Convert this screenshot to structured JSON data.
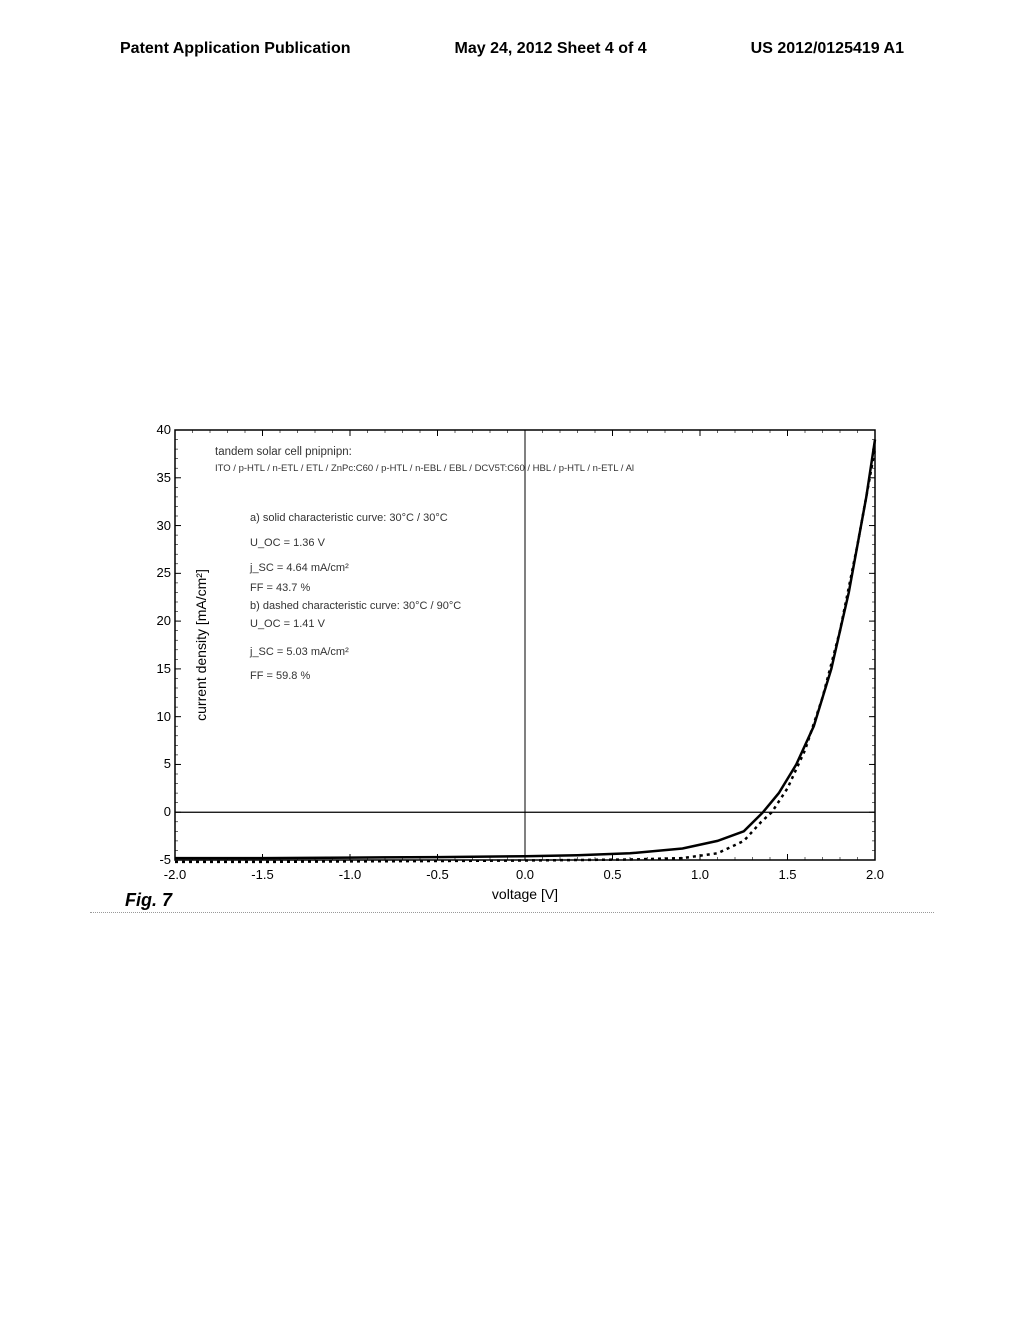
{
  "header": {
    "left": "Patent Application Publication",
    "center": "May 24, 2012  Sheet 4 of 4",
    "right": "US 2012/0125419 A1"
  },
  "figure_label": "Fig. 7",
  "chart": {
    "type": "line",
    "title": "tandem solar cell pnipnipn:",
    "subtitle": "ITO / p-HTL / n-ETL / ETL / ZnPc:C60 / p-HTL / n-EBL / EBL / DCV5T:C60 / HBL / p-HTL / n-ETL / Al",
    "xlabel": "voltage [V]",
    "ylabel": "current density [mA/cm²]",
    "xlim": [
      -2.0,
      2.0
    ],
    "ylim": [
      -5,
      40
    ],
    "xticks": [
      -2.0,
      -1.5,
      -1.0,
      -0.5,
      0.0,
      0.5,
      1.0,
      1.5,
      2.0
    ],
    "yticks": [
      -5,
      0,
      5,
      10,
      15,
      20,
      25,
      30,
      35,
      40
    ],
    "background_color": "#ffffff",
    "border_color": "#000000",
    "annotations": {
      "series_a_label": "a) solid characteristic curve: 30°C / 30°C",
      "series_a_uoc": "U_OC = 1.36 V",
      "series_a_jsc": "j_SC = 4.64 mA/cm²",
      "series_a_ff": "FF = 43.7 %",
      "series_b_label": "b) dashed characteristic curve: 30°C / 90°C",
      "series_b_uoc": "U_OC = 1.41 V",
      "series_b_jsc": "j_SC = 5.03 mA/cm²",
      "series_b_ff": "FF = 59.8 %"
    },
    "series": [
      {
        "name": "solid",
        "style": "solid",
        "color": "#000000",
        "width": 2.5,
        "data": [
          [
            -2.0,
            -4.8
          ],
          [
            -1.5,
            -4.8
          ],
          [
            -1.0,
            -4.75
          ],
          [
            -0.5,
            -4.7
          ],
          [
            0.0,
            -4.6
          ],
          [
            0.3,
            -4.5
          ],
          [
            0.6,
            -4.3
          ],
          [
            0.9,
            -3.8
          ],
          [
            1.1,
            -3.0
          ],
          [
            1.25,
            -2.0
          ],
          [
            1.36,
            0.0
          ],
          [
            1.45,
            2.0
          ],
          [
            1.55,
            5.0
          ],
          [
            1.65,
            9.0
          ],
          [
            1.75,
            15.0
          ],
          [
            1.85,
            23.0
          ],
          [
            1.95,
            33.0
          ],
          [
            2.0,
            39.0
          ]
        ]
      },
      {
        "name": "dashed",
        "style": "dashed",
        "color": "#000000",
        "width": 2.5,
        "data": [
          [
            -2.0,
            -5.2
          ],
          [
            -1.5,
            -5.2
          ],
          [
            -1.0,
            -5.15
          ],
          [
            -0.5,
            -5.1
          ],
          [
            0.0,
            -5.05
          ],
          [
            0.3,
            -5.0
          ],
          [
            0.6,
            -4.95
          ],
          [
            0.9,
            -4.8
          ],
          [
            1.1,
            -4.3
          ],
          [
            1.25,
            -3.0
          ],
          [
            1.35,
            -1.0
          ],
          [
            1.41,
            0.0
          ],
          [
            1.5,
            2.5
          ],
          [
            1.6,
            6.5
          ],
          [
            1.7,
            12.0
          ],
          [
            1.8,
            19.0
          ],
          [
            1.9,
            28.0
          ],
          [
            2.0,
            38.0
          ]
        ]
      }
    ]
  }
}
